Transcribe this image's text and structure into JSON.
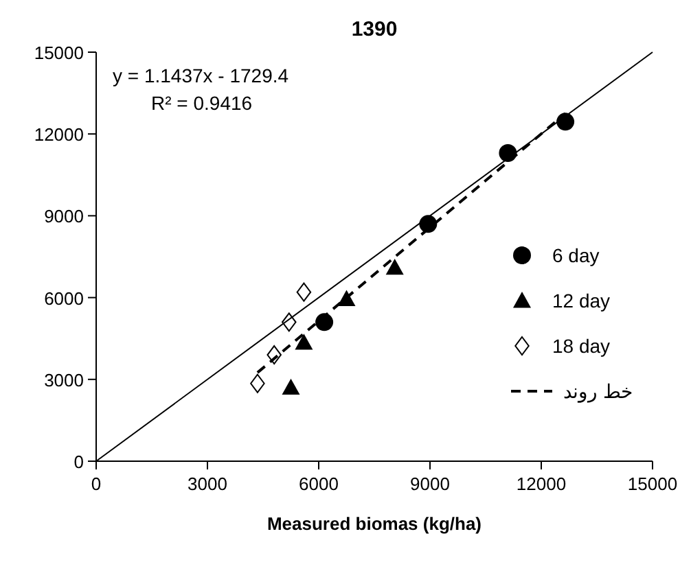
{
  "chart_data": {
    "type": "scatter",
    "title": "1390",
    "xlabel": "Measured biomas (kg/ha)",
    "xlim": [
      0,
      15000
    ],
    "ylim": [
      0,
      15000
    ],
    "xticks": [
      0,
      3000,
      6000,
      9000,
      12000,
      15000
    ],
    "yticks": [
      0,
      3000,
      6000,
      9000,
      12000,
      15000
    ],
    "annotations": [
      "y = 1.1437x - 1729.4",
      "R² = 0.9416"
    ],
    "legend": "right",
    "grid": false,
    "series": [
      {
        "name": "6 day",
        "marker": "circle",
        "color": "#000000",
        "x": [
          12650,
          11100,
          8950,
          6150
        ],
        "values": [
          12450,
          11300,
          8700,
          5100
        ]
      },
      {
        "name": "12 day",
        "marker": "triangle",
        "color": "#000000",
        "x": [
          8050,
          6750,
          5600,
          5250
        ],
        "values": [
          7100,
          5950,
          4350,
          2700
        ]
      },
      {
        "name": "18 day",
        "marker": "diamond",
        "color": "#000000",
        "x": [
          5600,
          5200,
          4800,
          4350
        ],
        "values": [
          6200,
          5100,
          3900,
          2850
        ]
      },
      {
        "name": "خط روند",
        "type": "line",
        "line_style": "dashed",
        "color": "#000000",
        "x": [
          4350,
          12650
        ],
        "values": [
          3250,
          12750
        ]
      },
      {
        "type": "line",
        "line_style": "solid",
        "color": "#000000",
        "x": [
          0,
          15000
        ],
        "values": [
          0,
          15000
        ]
      }
    ]
  }
}
